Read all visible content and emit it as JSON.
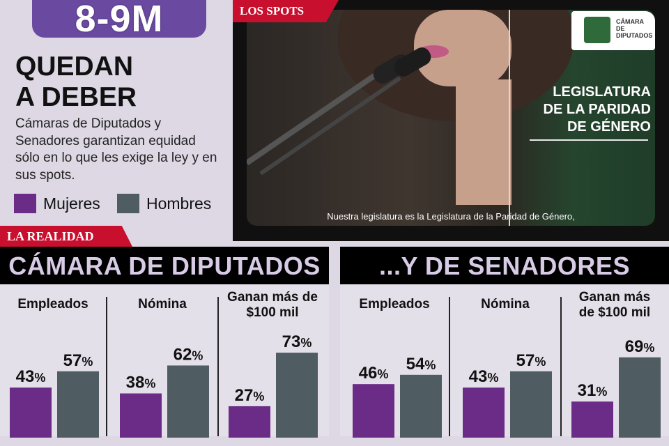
{
  "header": {
    "date_badge": "8-9M",
    "headline_line1": "QUEDAN",
    "headline_line2": "A DEBER",
    "subhead": "Cámaras de Diputados y Senadores garantizan equidad sólo en lo que les exige la ley y en sus spots."
  },
  "legend": {
    "mujeres": "Mujeres",
    "hombres": "Hombres",
    "mujeres_color": "#6a2c86",
    "hombres_color": "#4f5d62"
  },
  "spots": {
    "tag": "LOS SPOTS",
    "legislatura_line1": "LEGISLATURA",
    "legislatura_line2": "DE LA PARIDAD",
    "legislatura_line3": "DE GÉNERO",
    "logo_line1": "CÁMARA DE",
    "logo_line2": "DIPUTADOS",
    "caption": "Nuestra legislatura es la Legislatura de la Paridad de Género,"
  },
  "realidad_tag": "LA REALIDAD",
  "chart_data": [
    {
      "type": "bar",
      "title": "CÁMARA DE DIPUTADOS",
      "categories": [
        "Empleados",
        "Nómina",
        "Ganan más de $100 mil"
      ],
      "series": [
        {
          "name": "Mujeres",
          "values": [
            43,
            38,
            27
          ]
        },
        {
          "name": "Hombres",
          "values": [
            57,
            62,
            73
          ]
        }
      ],
      "ylim": [
        0,
        100
      ],
      "unit": "%"
    },
    {
      "type": "bar",
      "title": "...Y DE SENADORES",
      "categories": [
        "Empleados",
        "Nómina",
        "Ganan más de $100 mil"
      ],
      "series": [
        {
          "name": "Mujeres",
          "values": [
            46,
            43,
            31
          ]
        },
        {
          "name": "Hombres",
          "values": [
            54,
            57,
            69
          ]
        }
      ],
      "ylim": [
        0,
        100
      ],
      "unit": "%"
    }
  ]
}
